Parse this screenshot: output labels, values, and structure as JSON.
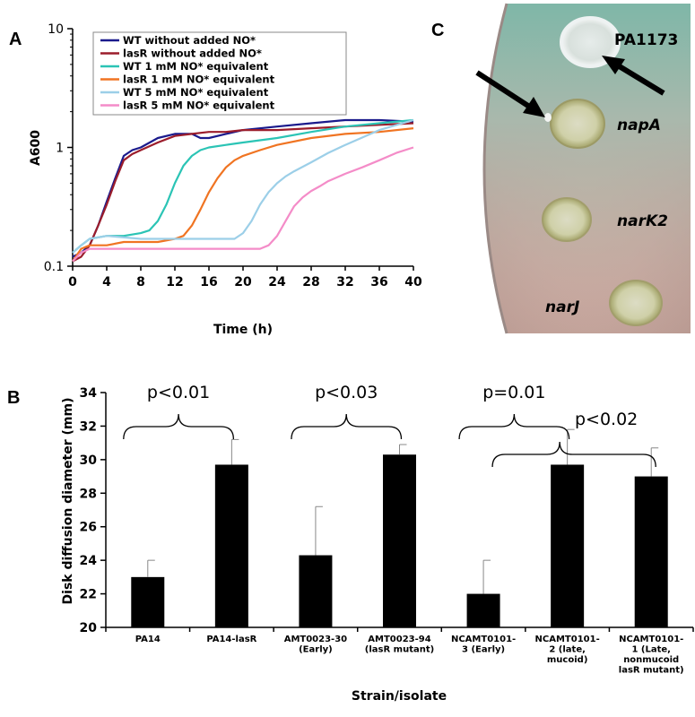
{
  "panel_labels": {
    "a": "A",
    "b": "B",
    "c": "C"
  },
  "colors": {
    "WT without added NO*": "#1a1a8c",
    "lasR without added NO*": "#9b1d2b",
    "WT 1 mM NO* equivalent": "#2bc4b5",
    "lasR 1 mM NO* equivalent": "#f07422",
    "WT 5 mM NO* equivalent": "#9ccfe8",
    "lasR 5 mM NO* equivalent": "#f48cc8",
    "bar": "#000000"
  },
  "chart_data": [
    {
      "type": "line",
      "panel": "A",
      "title": "",
      "xlabel": "Time (h)",
      "ylabel": "A600",
      "xlim": [
        0,
        40
      ],
      "ylim": [
        0.1,
        10
      ],
      "y_scale": "log",
      "x_ticks": [
        0,
        4,
        8,
        12,
        16,
        20,
        24,
        28,
        32,
        36,
        40
      ],
      "y_ticks": [
        0.1,
        1,
        10
      ],
      "y_tick_labels": [
        "0.1",
        "1",
        "10"
      ],
      "legend_position": "top-center",
      "series": [
        {
          "name": "WT without added NO*",
          "x": [
            0,
            1,
            2,
            3,
            4,
            5,
            6,
            7,
            8,
            10,
            12,
            14,
            15,
            16,
            18,
            20,
            24,
            28,
            32,
            36,
            40
          ],
          "y": [
            0.12,
            0.13,
            0.15,
            0.22,
            0.35,
            0.55,
            0.85,
            0.95,
            1.0,
            1.2,
            1.3,
            1.3,
            1.2,
            1.2,
            1.3,
            1.4,
            1.5,
            1.6,
            1.7,
            1.7,
            1.65
          ]
        },
        {
          "name": "lasR without added NO*",
          "x": [
            0,
            1,
            2,
            3,
            4,
            5,
            6,
            7,
            8,
            10,
            12,
            14,
            16,
            18,
            20,
            24,
            28,
            32,
            36,
            40
          ],
          "y": [
            0.11,
            0.12,
            0.15,
            0.22,
            0.33,
            0.52,
            0.78,
            0.88,
            0.95,
            1.1,
            1.25,
            1.3,
            1.35,
            1.35,
            1.4,
            1.4,
            1.45,
            1.5,
            1.55,
            1.6
          ]
        },
        {
          "name": "WT 1 mM NO* equivalent",
          "x": [
            0,
            1,
            2,
            4,
            6,
            8,
            9,
            10,
            11,
            12,
            13,
            14,
            15,
            16,
            18,
            20,
            24,
            28,
            32,
            36,
            40
          ],
          "y": [
            0.13,
            0.15,
            0.17,
            0.18,
            0.18,
            0.19,
            0.2,
            0.24,
            0.33,
            0.5,
            0.7,
            0.85,
            0.95,
            1.0,
            1.05,
            1.1,
            1.2,
            1.35,
            1.5,
            1.6,
            1.7
          ]
        },
        {
          "name": "lasR 1 mM NO* equivalent",
          "x": [
            0,
            1,
            2,
            4,
            6,
            8,
            10,
            12,
            13,
            14,
            15,
            16,
            17,
            18,
            19,
            20,
            22,
            24,
            28,
            32,
            36,
            40
          ],
          "y": [
            0.11,
            0.14,
            0.15,
            0.15,
            0.16,
            0.16,
            0.16,
            0.17,
            0.18,
            0.22,
            0.3,
            0.42,
            0.55,
            0.68,
            0.78,
            0.85,
            0.95,
            1.05,
            1.2,
            1.3,
            1.35,
            1.45
          ]
        },
        {
          "name": "WT 5 mM NO* equivalent",
          "x": [
            0,
            1,
            2,
            4,
            8,
            12,
            16,
            18,
            19,
            20,
            21,
            22,
            23,
            24,
            25,
            26,
            28,
            30,
            32,
            36,
            40
          ],
          "y": [
            0.13,
            0.15,
            0.17,
            0.18,
            0.17,
            0.17,
            0.17,
            0.17,
            0.17,
            0.19,
            0.24,
            0.33,
            0.42,
            0.5,
            0.57,
            0.63,
            0.75,
            0.9,
            1.05,
            1.4,
            1.7
          ]
        },
        {
          "name": "lasR 5 mM NO* equivalent",
          "x": [
            0,
            1,
            2,
            4,
            8,
            12,
            16,
            20,
            22,
            23,
            24,
            25,
            26,
            27,
            28,
            29,
            30,
            32,
            34,
            36,
            38,
            40
          ],
          "y": [
            0.11,
            0.13,
            0.14,
            0.14,
            0.14,
            0.14,
            0.14,
            0.14,
            0.14,
            0.15,
            0.18,
            0.24,
            0.32,
            0.38,
            0.43,
            0.47,
            0.52,
            0.6,
            0.68,
            0.78,
            0.9,
            1.0
          ]
        }
      ]
    },
    {
      "type": "bar",
      "panel": "B",
      "title": "",
      "xlabel": "Strain/isolate",
      "ylabel": "Disk diffusion diameter (mm)",
      "ylim": [
        20,
        34
      ],
      "y_ticks": [
        20,
        22,
        24,
        26,
        28,
        30,
        32,
        34
      ],
      "categories": [
        [
          "PA14"
        ],
        [
          "PA14-lasR"
        ],
        [
          "AMT0023-30",
          "(Early)"
        ],
        [
          "AMT0023-94",
          "(lasR mutant)"
        ],
        [
          "NCAMT0101-",
          "3 (Early)"
        ],
        [
          "NCAMT0101-",
          "2 (late,",
          "mucoid)"
        ],
        [
          "NCAMT0101-",
          "1 (Late,",
          "nonmucoid",
          "lasR mutant)"
        ]
      ],
      "values": [
        23.0,
        29.7,
        24.3,
        30.3,
        22.0,
        29.7,
        29.0
      ],
      "errors": [
        1.0,
        1.5,
        2.9,
        0.6,
        2.0,
        2.1,
        1.7
      ],
      "annotations": [
        {
          "text": "p<0.01",
          "from": 0,
          "to": 1
        },
        {
          "text": "p<0.03",
          "from": 2,
          "to": 3
        },
        {
          "text": "p=0.01",
          "from": 4,
          "to": 5
        },
        {
          "text": "p<0.02",
          "from": 4,
          "to": 6
        }
      ]
    }
  ],
  "plate": {
    "labels": {
      "pa1173": "PA1173",
      "napA": "napA",
      "narK2": "narK2",
      "narJ": "narJ"
    }
  }
}
